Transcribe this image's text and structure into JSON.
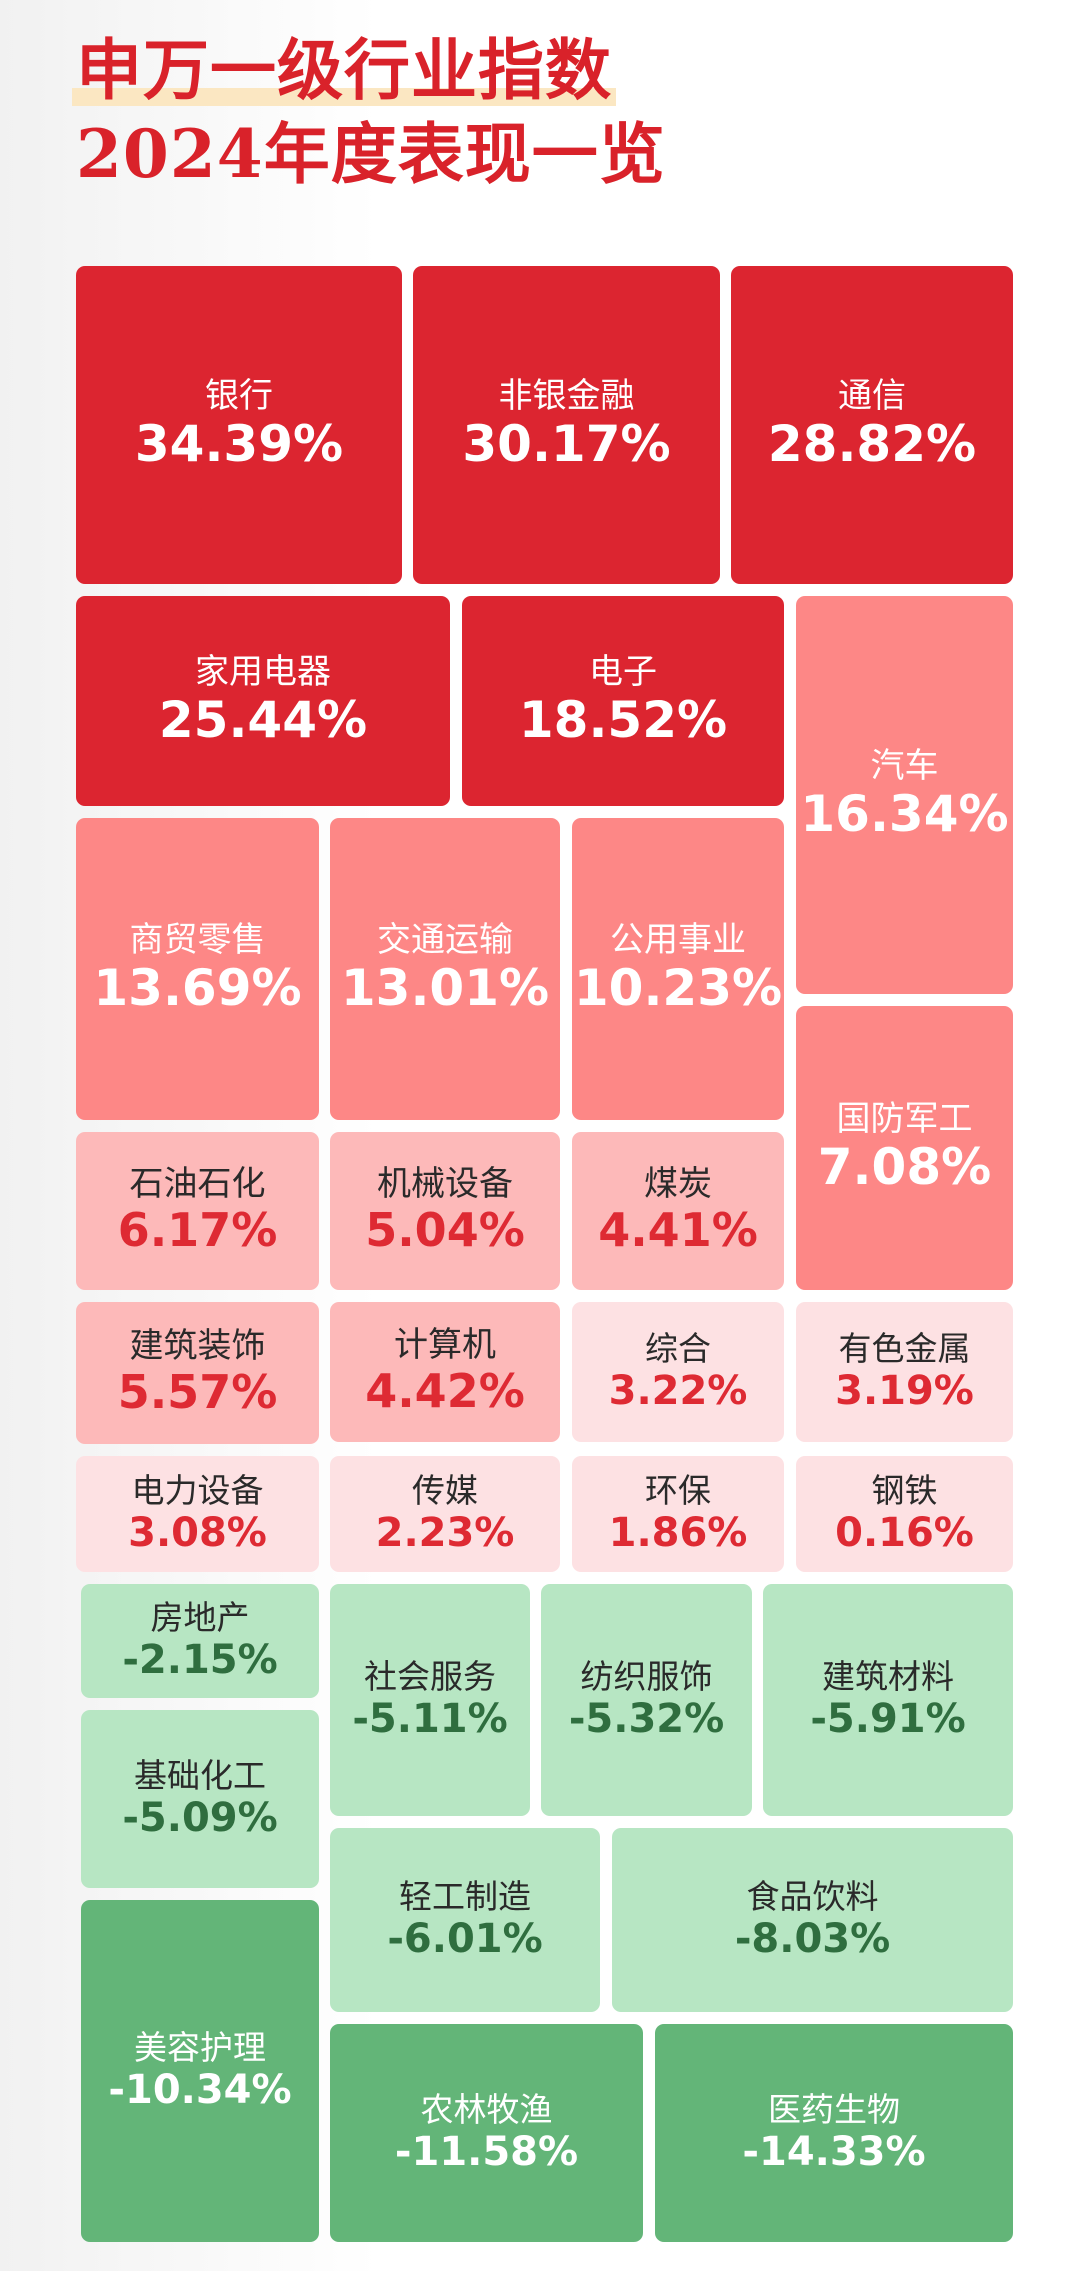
{
  "title": {
    "line1": "申万一级行业指数",
    "line2": "2024年度表现一览"
  },
  "chart_data": {
    "type": "treemap",
    "title": "申万一级行业指数 2024年度表现一览",
    "unit": "%",
    "items": [
      {
        "name": "银行",
        "value": 34.39,
        "label": "34.39%"
      },
      {
        "name": "非银金融",
        "value": 30.17,
        "label": "30.17%"
      },
      {
        "name": "通信",
        "value": 28.82,
        "label": "28.82%"
      },
      {
        "name": "家用电器",
        "value": 25.44,
        "label": "25.44%"
      },
      {
        "name": "电子",
        "value": 18.52,
        "label": "18.52%"
      },
      {
        "name": "汽车",
        "value": 16.34,
        "label": "16.34%"
      },
      {
        "name": "商贸零售",
        "value": 13.69,
        "label": "13.69%"
      },
      {
        "name": "交通运输",
        "value": 13.01,
        "label": "13.01%"
      },
      {
        "name": "公用事业",
        "value": 10.23,
        "label": "10.23%"
      },
      {
        "name": "国防军工",
        "value": 7.08,
        "label": "7.08%"
      },
      {
        "name": "石油石化",
        "value": 6.17,
        "label": "6.17%"
      },
      {
        "name": "机械设备",
        "value": 5.04,
        "label": "5.04%"
      },
      {
        "name": "煤炭",
        "value": 4.41,
        "label": "4.41%"
      },
      {
        "name": "建筑装饰",
        "value": 5.57,
        "label": "5.57%"
      },
      {
        "name": "计算机",
        "value": 4.42,
        "label": "4.42%"
      },
      {
        "name": "综合",
        "value": 3.22,
        "label": "3.22%"
      },
      {
        "name": "有色金属",
        "value": 3.19,
        "label": "3.19%"
      },
      {
        "name": "电力设备",
        "value": 3.08,
        "label": "3.08%"
      },
      {
        "name": "传媒",
        "value": 2.23,
        "label": "2.23%"
      },
      {
        "name": "环保",
        "value": 1.86,
        "label": "1.86%"
      },
      {
        "name": "钢铁",
        "value": 0.16,
        "label": "0.16%"
      },
      {
        "name": "房地产",
        "value": -2.15,
        "label": "-2.15%"
      },
      {
        "name": "社会服务",
        "value": -5.11,
        "label": "-5.11%"
      },
      {
        "name": "纺织服饰",
        "value": -5.32,
        "label": "-5.32%"
      },
      {
        "name": "建筑材料",
        "value": -5.91,
        "label": "-5.91%"
      },
      {
        "name": "基础化工",
        "value": -5.09,
        "label": "-5.09%"
      },
      {
        "name": "轻工制造",
        "value": -6.01,
        "label": "-6.01%"
      },
      {
        "name": "食品饮料",
        "value": -8.03,
        "label": "-8.03%"
      },
      {
        "name": "美容护理",
        "value": -10.34,
        "label": "-10.34%"
      },
      {
        "name": "农林牧渔",
        "value": -11.58,
        "label": "-11.58%"
      },
      {
        "name": "医药生物",
        "value": -14.33,
        "label": "-14.33%"
      }
    ],
    "colors": {
      "strong_gain": "#dc2530",
      "gain": "#fd8786",
      "mild_gain": "#fdb9b9",
      "slight_gain": "#fde1e3",
      "slight_loss": "#b7e6c3",
      "loss": "#63b578"
    }
  }
}
